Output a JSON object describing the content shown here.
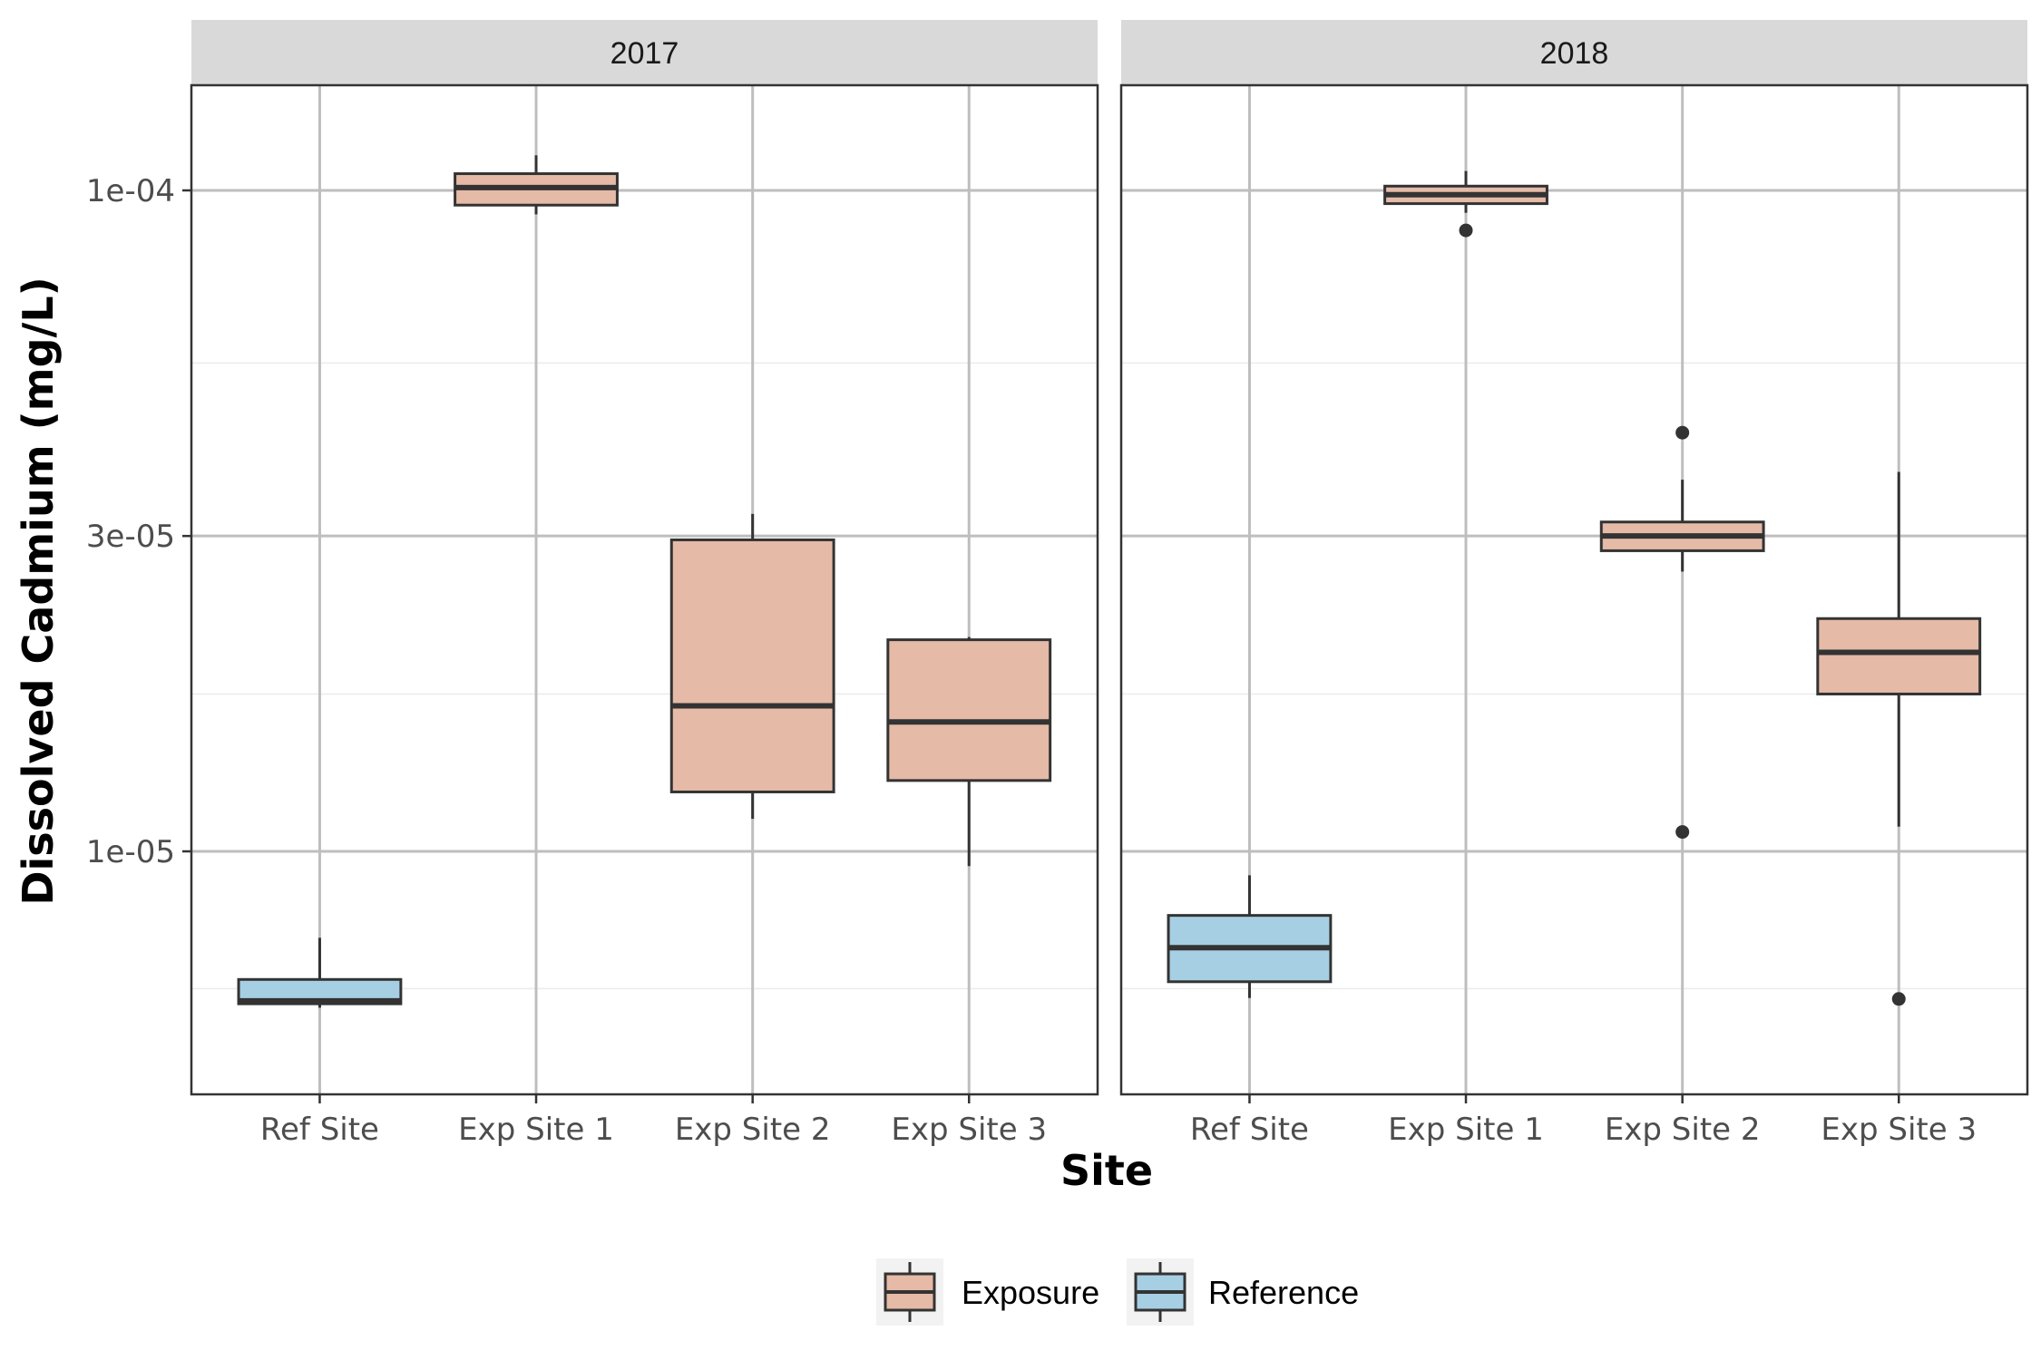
{
  "chart_data": {
    "type": "boxplot",
    "facet_by": "Year",
    "y_scale": "log10",
    "ylim": [
      5.5e-06,
      0.000135
    ],
    "ylabel": "Dissolved Cadmium (mg/L)",
    "xlabel": "Site",
    "y_ticks": [
      {
        "value": 1e-05,
        "label": "1e-05"
      },
      {
        "value": 3e-05,
        "label": "3e-05"
      },
      {
        "value": 0.0001,
        "label": "1e-04"
      }
    ],
    "y_minor_gridlines": [
      6.2e-06,
      1.73e-05,
      5.48e-05
    ],
    "grid": true,
    "categories": [
      "Ref Site",
      "Exp Site 1",
      "Exp Site 2",
      "Exp Site 3"
    ],
    "legend": {
      "position": "bottom",
      "entries": [
        {
          "label": "Exposure",
          "color": "#E5BAA7"
        },
        {
          "label": "Reference",
          "color": "#A7CFE3"
        }
      ]
    },
    "colors": {
      "Exposure": "#E5BAA7",
      "Reference": "#A7CFE3",
      "outline": "#333333"
    },
    "panels": [
      {
        "title": "2017",
        "boxes": [
          {
            "site": "Ref Site",
            "group": "Reference",
            "min": 5.8e-06,
            "q1": 5.88e-06,
            "median": 5.94e-06,
            "q3": 6.4e-06,
            "max": 7.4e-06,
            "outliers": []
          },
          {
            "site": "Exp Site 1",
            "group": "Exposure",
            "min": 9.2e-05,
            "q1": 9.5e-05,
            "median": 0.000101,
            "q3": 0.000106,
            "max": 0.000113,
            "outliers": []
          },
          {
            "site": "Exp Site 2",
            "group": "Exposure",
            "min": 1.12e-05,
            "q1": 1.23e-05,
            "median": 1.66e-05,
            "q3": 2.96e-05,
            "max": 3.24e-05,
            "outliers": []
          },
          {
            "site": "Exp Site 3",
            "group": "Exposure",
            "min": 9.5e-06,
            "q1": 1.28e-05,
            "median": 1.57e-05,
            "q3": 2.09e-05,
            "max": 2.11e-05,
            "outliers": []
          }
        ]
      },
      {
        "title": "2018",
        "boxes": [
          {
            "site": "Ref Site",
            "group": "Reference",
            "min": 6e-06,
            "q1": 6.35e-06,
            "median": 7.15e-06,
            "q3": 8e-06,
            "max": 9.2e-06,
            "outliers": []
          },
          {
            "site": "Exp Site 1",
            "group": "Exposure",
            "min": 9.25e-05,
            "q1": 9.55e-05,
            "median": 9.85e-05,
            "q3": 0.0001015,
            "max": 0.000107,
            "outliers": [
              8.7e-05
            ]
          },
          {
            "site": "Exp Site 2",
            "group": "Exposure",
            "min": 2.65e-05,
            "q1": 2.85e-05,
            "median": 3e-05,
            "q3": 3.15e-05,
            "max": 3.65e-05,
            "outliers": [
              4.3e-05,
              1.07e-05
            ]
          },
          {
            "site": "Exp Site 3",
            "group": "Exposure",
            "min": 1.09e-05,
            "q1": 1.73e-05,
            "median": 2e-05,
            "q3": 2.25e-05,
            "max": 3.75e-05,
            "outliers": [
              5.98e-06
            ]
          }
        ]
      }
    ]
  }
}
